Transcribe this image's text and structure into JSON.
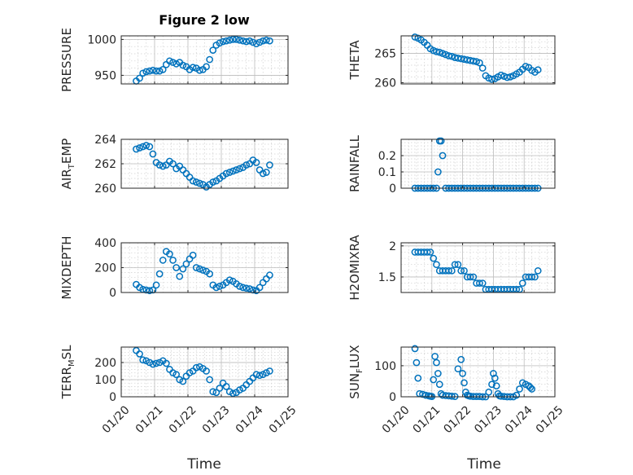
{
  "figure": {
    "title": "Figure 2 low",
    "xlabel": "Time",
    "x_tick_labels": [
      "01/20",
      "01/21",
      "01/22",
      "01/23",
      "01/24",
      "01/25"
    ],
    "xlim_days": [
      20,
      25
    ],
    "marker_color": "#0072bd"
  },
  "chart_data": [
    {
      "type": "scatter",
      "panel": "pressure",
      "ylabel": "PRESSURE",
      "yticks": [
        950,
        1000
      ],
      "ytick_labels": [
        "950",
        "1000"
      ],
      "ylim": [
        938,
        1005
      ],
      "x": [
        20.45,
        20.55,
        20.65,
        20.75,
        20.85,
        20.95,
        21.05,
        21.15,
        21.25,
        21.35,
        21.45,
        21.55,
        21.65,
        21.75,
        21.85,
        21.95,
        22.05,
        22.15,
        22.25,
        22.35,
        22.45,
        22.55,
        22.65,
        22.75,
        22.85,
        22.95,
        23.05,
        23.15,
        23.25,
        23.35,
        23.45,
        23.55,
        23.65,
        23.75,
        23.85,
        23.95,
        24.05,
        24.15,
        24.25,
        24.35,
        24.45
      ],
      "y": [
        942,
        946,
        953,
        955,
        956,
        957,
        956,
        956,
        958,
        965,
        970,
        968,
        966,
        968,
        964,
        962,
        958,
        961,
        960,
        957,
        958,
        962,
        972,
        985,
        992,
        995,
        997,
        998,
        999,
        1000,
        1000,
        999,
        998,
        997,
        998,
        996,
        994,
        996,
        998,
        999,
        998
      ]
    },
    {
      "type": "scatter",
      "panel": "theta",
      "ylabel": "THETA",
      "yticks": [
        260,
        265
      ],
      "ytick_labels": [
        "260",
        "265"
      ],
      "ylim": [
        259.8,
        268
      ],
      "x": [
        20.45,
        20.55,
        20.65,
        20.75,
        20.85,
        20.95,
        21.05,
        21.15,
        21.25,
        21.35,
        21.45,
        21.55,
        21.65,
        21.75,
        21.85,
        21.95,
        22.05,
        22.15,
        22.25,
        22.35,
        22.45,
        22.55,
        22.65,
        22.75,
        22.85,
        22.95,
        23.05,
        23.15,
        23.25,
        23.35,
        23.45,
        23.55,
        23.65,
        23.75,
        23.85,
        23.95,
        24.05,
        24.15,
        24.25,
        24.35,
        24.45
      ],
      "y": [
        267.8,
        267.6,
        267.3,
        266.9,
        266.4,
        265.8,
        265.5,
        265.3,
        265.2,
        265.0,
        264.8,
        264.6,
        264.5,
        264.3,
        264.2,
        264.1,
        264.0,
        263.9,
        263.8,
        263.7,
        263.6,
        263.4,
        262.5,
        261.2,
        260.8,
        260.6,
        260.7,
        261.0,
        261.3,
        261.1,
        260.9,
        261.0,
        261.2,
        261.5,
        261.8,
        262.3,
        262.8,
        262.6,
        262.1,
        261.8,
        262.2
      ]
    },
    {
      "type": "scatter",
      "panel": "air_temp",
      "ylabel": "AIR_TEMP",
      "ylabel_base": "AIR",
      "ylabel_sub": "T",
      "ylabel_rest": "EMP",
      "yticks": [
        260,
        262,
        264
      ],
      "ytick_labels": [
        "260",
        "262",
        "264"
      ],
      "ylim": [
        260,
        264
      ],
      "x": [
        20.45,
        20.55,
        20.65,
        20.75,
        20.85,
        20.95,
        21.05,
        21.15,
        21.25,
        21.35,
        21.45,
        21.55,
        21.65,
        21.75,
        21.85,
        21.95,
        22.05,
        22.15,
        22.25,
        22.35,
        22.45,
        22.55,
        22.65,
        22.75,
        22.85,
        22.95,
        23.05,
        23.15,
        23.25,
        23.35,
        23.45,
        23.55,
        23.65,
        23.75,
        23.85,
        23.95,
        24.05,
        24.15,
        24.25,
        24.35,
        24.45
      ],
      "y": [
        263.2,
        263.3,
        263.4,
        263.5,
        263.4,
        262.8,
        262.1,
        261.9,
        261.8,
        261.9,
        262.2,
        262.0,
        261.6,
        261.8,
        261.5,
        261.2,
        260.9,
        260.6,
        260.5,
        260.4,
        260.3,
        260.1,
        260.3,
        260.5,
        260.6,
        260.8,
        261.0,
        261.2,
        261.3,
        261.4,
        261.5,
        261.6,
        261.7,
        261.9,
        262.0,
        262.3,
        262.1,
        261.5,
        261.2,
        261.3,
        261.9
      ]
    },
    {
      "type": "scatter",
      "panel": "rainfall",
      "ylabel": "RAINFALL",
      "yticks": [
        0,
        0.1,
        0.2
      ],
      "ytick_labels": [
        "0",
        "0.1",
        "0.2"
      ],
      "ylim": [
        0,
        0.3
      ],
      "x": [
        20.45,
        20.55,
        20.65,
        20.75,
        20.85,
        20.95,
        21.05,
        21.15,
        21.2,
        21.25,
        21.3,
        21.35,
        21.45,
        21.55,
        21.65,
        21.75,
        21.85,
        21.95,
        22.05,
        22.15,
        22.25,
        22.35,
        22.45,
        22.55,
        22.65,
        22.75,
        22.85,
        22.95,
        23.05,
        23.15,
        23.25,
        23.35,
        23.45,
        23.55,
        23.65,
        23.75,
        23.85,
        23.95,
        24.05,
        24.15,
        24.25,
        24.35,
        24.45
      ],
      "y": [
        0,
        0,
        0,
        0,
        0,
        0,
        0,
        0,
        0.1,
        0.29,
        0.29,
        0.2,
        0,
        0,
        0,
        0,
        0,
        0,
        0,
        0,
        0,
        0,
        0,
        0,
        0,
        0,
        0,
        0,
        0,
        0,
        0,
        0,
        0,
        0,
        0,
        0,
        0,
        0,
        0,
        0,
        0,
        0,
        0
      ]
    },
    {
      "type": "scatter",
      "panel": "mixdepth",
      "ylabel": "MIXDEPTH",
      "yticks": [
        0,
        200,
        400
      ],
      "ytick_labels": [
        "0",
        "200",
        "400"
      ],
      "ylim": [
        0,
        400
      ],
      "x": [
        20.45,
        20.55,
        20.65,
        20.75,
        20.85,
        20.95,
        21.05,
        21.15,
        21.25,
        21.35,
        21.45,
        21.55,
        21.65,
        21.75,
        21.85,
        21.95,
        22.05,
        22.15,
        22.25,
        22.35,
        22.45,
        22.55,
        22.65,
        22.75,
        22.85,
        22.95,
        23.05,
        23.15,
        23.25,
        23.35,
        23.45,
        23.55,
        23.65,
        23.75,
        23.85,
        23.95,
        24.05,
        24.15,
        24.25,
        24.35,
        24.45
      ],
      "y": [
        65,
        40,
        25,
        20,
        15,
        20,
        60,
        150,
        260,
        330,
        310,
        260,
        200,
        130,
        190,
        230,
        270,
        300,
        200,
        190,
        180,
        170,
        150,
        60,
        40,
        50,
        60,
        80,
        100,
        90,
        70,
        50,
        40,
        35,
        30,
        20,
        15,
        40,
        80,
        110,
        140
      ]
    },
    {
      "type": "scatter",
      "panel": "h2omixra",
      "ylabel": "H2OMIXRA",
      "yticks": [
        1.5,
        2
      ],
      "ytick_labels": [
        "1.5",
        "2"
      ],
      "ylim": [
        1.25,
        2.05
      ],
      "x": [
        20.45,
        20.55,
        20.65,
        20.75,
        20.85,
        20.95,
        21.05,
        21.15,
        21.25,
        21.35,
        21.45,
        21.55,
        21.65,
        21.75,
        21.85,
        21.95,
        22.05,
        22.15,
        22.25,
        22.35,
        22.45,
        22.55,
        22.65,
        22.75,
        22.85,
        22.95,
        23.05,
        23.15,
        23.25,
        23.35,
        23.45,
        23.55,
        23.65,
        23.75,
        23.85,
        23.95,
        24.05,
        24.15,
        24.25,
        24.35,
        24.45
      ],
      "y": [
        1.9,
        1.9,
        1.9,
        1.9,
        1.9,
        1.9,
        1.8,
        1.7,
        1.6,
        1.6,
        1.6,
        1.6,
        1.6,
        1.7,
        1.7,
        1.6,
        1.6,
        1.5,
        1.5,
        1.5,
        1.4,
        1.4,
        1.4,
        1.3,
        1.3,
        1.3,
        1.3,
        1.3,
        1.3,
        1.3,
        1.3,
        1.3,
        1.3,
        1.3,
        1.3,
        1.4,
        1.5,
        1.5,
        1.5,
        1.5,
        1.6
      ]
    },
    {
      "type": "scatter",
      "panel": "terr_msl",
      "ylabel": "TERR_MSL",
      "ylabel_base": "TERR",
      "ylabel_sub": "M",
      "ylabel_rest": "SL",
      "yticks": [
        0,
        100,
        200
      ],
      "ytick_labels": [
        "0",
        "100",
        "200"
      ],
      "ylim": [
        0,
        290
      ],
      "x": [
        20.45,
        20.55,
        20.65,
        20.75,
        20.85,
        20.95,
        21.05,
        21.15,
        21.25,
        21.35,
        21.45,
        21.55,
        21.65,
        21.75,
        21.85,
        21.95,
        22.05,
        22.15,
        22.25,
        22.35,
        22.45,
        22.55,
        22.65,
        22.75,
        22.85,
        22.95,
        23.05,
        23.15,
        23.25,
        23.35,
        23.45,
        23.55,
        23.65,
        23.75,
        23.85,
        23.95,
        24.05,
        24.15,
        24.25,
        24.35,
        24.45
      ],
      "y": [
        270,
        250,
        215,
        210,
        200,
        190,
        195,
        200,
        210,
        195,
        160,
        140,
        130,
        100,
        90,
        120,
        140,
        150,
        170,
        175,
        165,
        150,
        100,
        30,
        25,
        50,
        80,
        60,
        30,
        20,
        25,
        40,
        50,
        70,
        90,
        110,
        130,
        125,
        130,
        140,
        150
      ]
    },
    {
      "type": "scatter",
      "panel": "sun_flux",
      "ylabel": "SUN_FLUX",
      "ylabel_base": "SUN",
      "ylabel_sub": "F",
      "ylabel_rest": "LUX",
      "yticks": [
        0,
        100
      ],
      "ytick_labels": [
        "0",
        "100"
      ],
      "ylim": [
        0,
        160
      ],
      "x": [
        20.45,
        20.5,
        20.55,
        20.6,
        20.7,
        20.8,
        20.9,
        20.95,
        21.0,
        21.05,
        21.1,
        21.15,
        21.2,
        21.25,
        21.3,
        21.35,
        21.45,
        21.55,
        21.65,
        21.75,
        21.85,
        21.95,
        22.0,
        22.05,
        22.1,
        22.15,
        22.2,
        22.25,
        22.35,
        22.45,
        22.55,
        22.65,
        22.75,
        22.85,
        22.95,
        23.0,
        23.05,
        23.1,
        23.15,
        23.2,
        23.25,
        23.35,
        23.45,
        23.55,
        23.65,
        23.75,
        23.85,
        23.95,
        24.05,
        24.15,
        24.2,
        24.25
      ],
      "y": [
        155,
        110,
        60,
        10,
        8,
        5,
        3,
        2,
        1,
        55,
        130,
        110,
        75,
        40,
        10,
        5,
        4,
        3,
        2,
        1,
        90,
        120,
        75,
        45,
        15,
        5,
        3,
        2,
        1,
        1,
        1,
        0,
        0,
        15,
        40,
        75,
        60,
        35,
        10,
        3,
        2,
        1,
        0,
        0,
        0,
        5,
        25,
        45,
        40,
        35,
        30,
        25
      ]
    }
  ]
}
